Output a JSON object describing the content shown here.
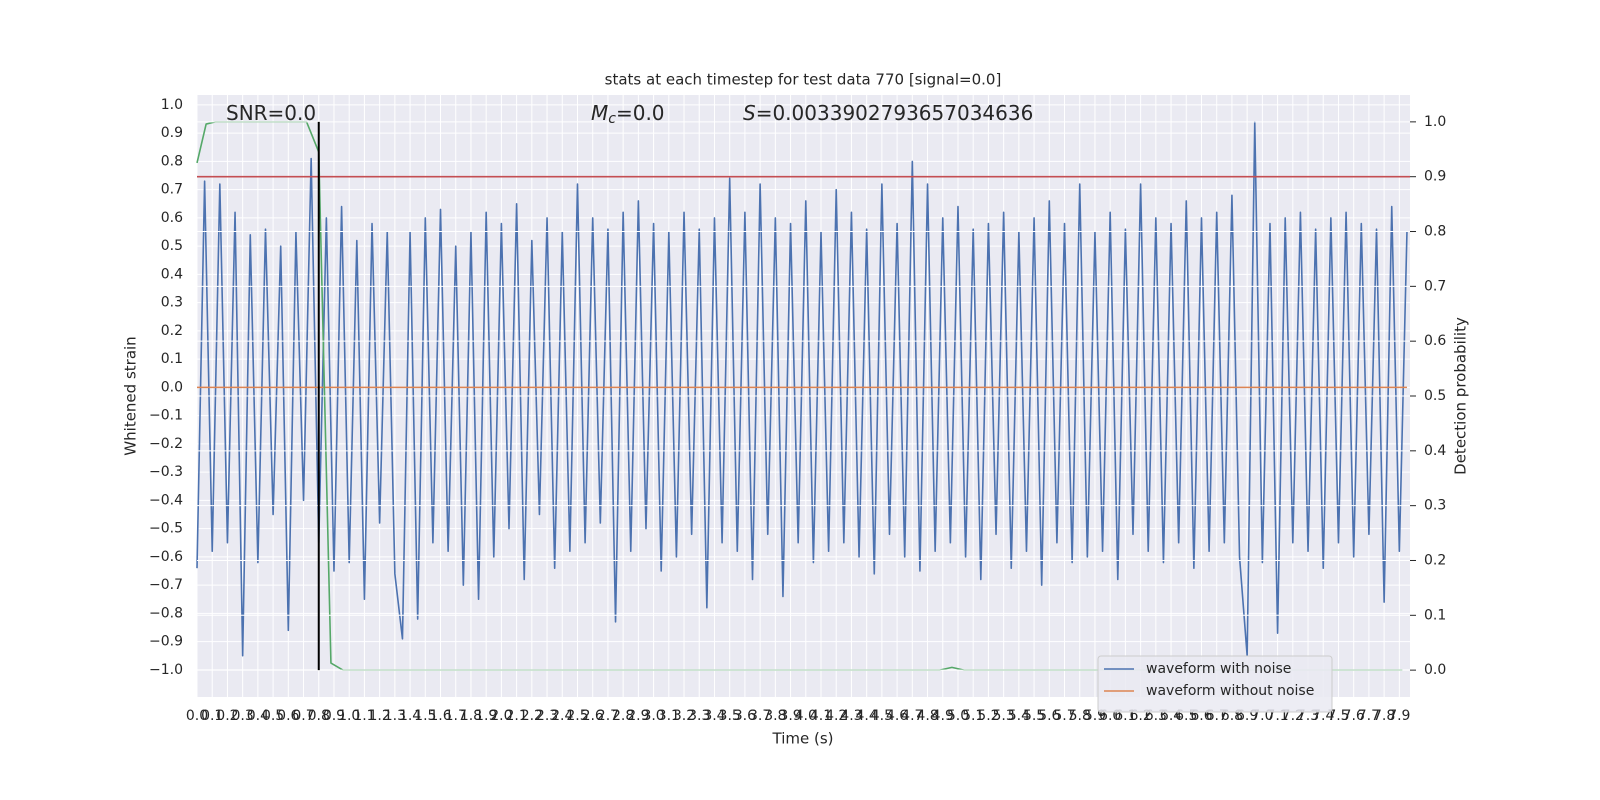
{
  "chart_data": {
    "type": "line",
    "title": "stats at each timestep for test data 770 [signal=0.0]",
    "xlabel": "Time (s)",
    "ylabel": "Whitened strain",
    "y2label": "Detection probability",
    "annotations": [
      {
        "text": "SNR=0.0"
      },
      {
        "symbol": "M",
        "sub": "c",
        "text": "=0.0"
      },
      {
        "symbol": "S",
        "text": "=0.0033902793657034636"
      }
    ],
    "xlim": [
      0,
      7.97
    ],
    "ylim": [
      -1.096,
      1.035
    ],
    "y2lim": [
      -0.049,
      1.049
    ],
    "xticks": [
      {
        "value": 0,
        "label": "0.0"
      },
      0.1,
      0.2,
      0.3,
      0.4,
      0.5,
      0.6,
      0.7,
      0.8,
      0.9,
      {
        "value": 1,
        "label": "1.0"
      },
      1.1,
      1.2,
      1.3,
      1.4,
      1.5,
      1.6,
      1.7,
      1.8,
      1.9,
      {
        "value": 2,
        "label": "2.0"
      },
      2.1,
      2.2,
      2.3,
      2.4,
      2.5,
      2.6,
      2.7,
      2.8,
      2.9,
      {
        "value": 3,
        "label": "3.0"
      },
      3.1,
      3.2,
      3.3,
      3.4,
      3.5,
      3.6,
      3.7,
      3.8,
      3.9,
      {
        "value": 4,
        "label": "4.0"
      },
      4.1,
      4.2,
      4.3,
      4.4,
      4.5,
      4.6,
      4.7,
      4.8,
      4.9,
      {
        "value": 5,
        "label": "5.0"
      },
      5.1,
      5.2,
      5.3,
      5.4,
      5.5,
      5.6,
      5.7,
      5.8,
      5.9,
      {
        "value": 6,
        "label": "6.0"
      },
      6.1,
      6.2,
      6.3,
      6.4,
      6.5,
      6.6,
      6.7,
      6.8,
      6.9,
      {
        "value": 7,
        "label": "7.0"
      },
      7.1,
      7.2,
      7.3,
      7.4,
      7.5,
      7.6,
      7.7,
      7.8,
      7.9
    ],
    "yticks": [
      {
        "value": -1,
        "label": "−1.0"
      },
      {
        "value": -0.9,
        "label": "−0.9"
      },
      {
        "value": -0.8,
        "label": "−0.8"
      },
      {
        "value": -0.7,
        "label": "−0.7"
      },
      {
        "value": -0.6,
        "label": "−0.6"
      },
      {
        "value": -0.5,
        "label": "−0.5"
      },
      {
        "value": -0.4,
        "label": "−0.4"
      },
      {
        "value": -0.3,
        "label": "−0.3"
      },
      {
        "value": -0.2,
        "label": "−0.2"
      },
      {
        "value": -0.1,
        "label": "−0.1"
      },
      {
        "value": 0,
        "label": "0.0"
      },
      0.1,
      0.2,
      0.3,
      0.4,
      0.5,
      0.6,
      0.7,
      0.8,
      0.9,
      {
        "value": 1,
        "label": "1.0"
      }
    ],
    "y2ticks": [
      {
        "value": 0,
        "label": "0.0"
      },
      0.1,
      0.2,
      0.3,
      0.4,
      0.5,
      0.6,
      0.7,
      0.8,
      0.9,
      {
        "value": 1,
        "label": "1.0"
      }
    ],
    "grid": true,
    "legend": "lower right",
    "series": [
      {
        "name": "waveform with noise",
        "color": "#4c72b0",
        "x": [
          0,
          0.05,
          0.1,
          0.15,
          0.2,
          0.25,
          0.3,
          0.35,
          0.4,
          0.45,
          0.5,
          0.55,
          0.6,
          0.65,
          0.7,
          0.75,
          0.8,
          0.85,
          0.9,
          0.95,
          1,
          1.05,
          1.1,
          1.15,
          1.2,
          1.25,
          1.3,
          1.35,
          1.4,
          1.45,
          1.5,
          1.55,
          1.6,
          1.65,
          1.7,
          1.75,
          1.8,
          1.85,
          1.9,
          1.95,
          2,
          2.05,
          2.1,
          2.15,
          2.2,
          2.25,
          2.3,
          2.35,
          2.4,
          2.45,
          2.5,
          2.55,
          2.6,
          2.65,
          2.7,
          2.75,
          2.8,
          2.85,
          2.9,
          2.95,
          3,
          3.05,
          3.1,
          3.15,
          3.2,
          3.25,
          3.3,
          3.35,
          3.4,
          3.45,
          3.5,
          3.55,
          3.6,
          3.65,
          3.7,
          3.75,
          3.8,
          3.85,
          3.9,
          3.95,
          4,
          4.05,
          4.1,
          4.15,
          4.2,
          4.25,
          4.3,
          4.35,
          4.4,
          4.45,
          4.5,
          4.55,
          4.6,
          4.65,
          4.7,
          4.75,
          4.8,
          4.85,
          4.9,
          4.95,
          5,
          5.05,
          5.1,
          5.15,
          5.2,
          5.25,
          5.3,
          5.35,
          5.4,
          5.45,
          5.5,
          5.55,
          5.6,
          5.65,
          5.7,
          5.75,
          5.8,
          5.85,
          5.9,
          5.95,
          6,
          6.05,
          6.1,
          6.15,
          6.2,
          6.25,
          6.3,
          6.35,
          6.4,
          6.45,
          6.5,
          6.55,
          6.6,
          6.65,
          6.7,
          6.75,
          6.8,
          6.85,
          6.9,
          6.95,
          7,
          7.05,
          7.1,
          7.15,
          7.2,
          7.25,
          7.3,
          7.35,
          7.4,
          7.45,
          7.5,
          7.55,
          7.6,
          7.65,
          7.7,
          7.75,
          7.8,
          7.85,
          7.9,
          7.95
        ],
        "values": [
          -0.64,
          0.73,
          -0.58,
          0.72,
          -0.55,
          0.62,
          -0.95,
          0.54,
          -0.62,
          0.56,
          -0.45,
          0.5,
          -0.86,
          0.55,
          -0.4,
          0.81,
          -0.55,
          0.6,
          -0.65,
          0.64,
          -0.62,
          0.52,
          -0.75,
          0.58,
          -0.48,
          0.55,
          -0.66,
          -0.89,
          0.55,
          -0.82,
          0.6,
          -0.55,
          0.63,
          -0.58,
          0.5,
          -0.7,
          0.55,
          -0.75,
          0.62,
          -0.6,
          0.58,
          -0.5,
          0.65,
          -0.68,
          0.52,
          -0.45,
          0.6,
          -0.64,
          0.55,
          -0.58,
          0.72,
          -0.55,
          0.6,
          -0.48,
          0.56,
          -0.83,
          0.62,
          -0.58,
          0.66,
          -0.5,
          0.58,
          -0.65,
          0.55,
          -0.6,
          0.62,
          -0.52,
          0.56,
          -0.78,
          0.6,
          -0.55,
          0.74,
          -0.58,
          0.62,
          -0.68,
          0.72,
          -0.52,
          0.6,
          -0.74,
          0.58,
          -0.55,
          0.66,
          -0.62,
          0.55,
          -0.58,
          0.7,
          -0.55,
          0.62,
          -0.6,
          0.56,
          -0.66,
          0.72,
          -0.52,
          0.58,
          -0.6,
          0.8,
          -0.65,
          0.72,
          -0.58,
          0.6,
          -0.55,
          0.64,
          -0.6,
          0.56,
          -0.68,
          0.58,
          -0.52,
          0.62,
          -0.64,
          0.55,
          -0.58,
          0.6,
          -0.7,
          0.66,
          -0.55,
          0.58,
          -0.62,
          0.72,
          -0.6,
          0.55,
          -0.58,
          0.62,
          -0.68,
          0.56,
          -0.52,
          0.72,
          -0.58,
          0.6,
          -0.62,
          0.58,
          -0.55,
          0.66,
          -0.64,
          0.6,
          -0.58,
          0.62,
          -0.55,
          0.68,
          -0.6,
          -0.95,
          0.94,
          -0.62,
          0.58,
          -0.87,
          0.6,
          -0.55,
          0.62,
          -0.58,
          0.56,
          -0.64,
          0.6,
          -0.55,
          0.62,
          -0.6,
          0.58,
          -0.52,
          0.56,
          -0.76,
          0.64,
          -0.58,
          0.55
        ]
      },
      {
        "name": "waveform without noise",
        "color": "#dd8452",
        "x": [
          0,
          7.95
        ],
        "values": [
          0,
          0
        ]
      },
      {
        "color": "#55a868",
        "axis": "y2",
        "x": [
          0,
          0.06,
          0.12,
          0.72,
          0.8,
          0.88,
          0.96,
          4.88,
          4.96,
          5.04,
          7.92
        ],
        "values": [
          0.925,
          0.996,
          1.0,
          1.0,
          0.945,
          0.013,
          0.0,
          0.0,
          0.005,
          0.0,
          0.0
        ]
      }
    ],
    "hlines": [
      {
        "value": 0.9,
        "axis": "y2",
        "color": "#c44e52"
      }
    ],
    "vlines": [
      {
        "x": 0.8,
        "from": 0,
        "to": 1,
        "axis": "y2",
        "color": "#000000"
      }
    ]
  }
}
